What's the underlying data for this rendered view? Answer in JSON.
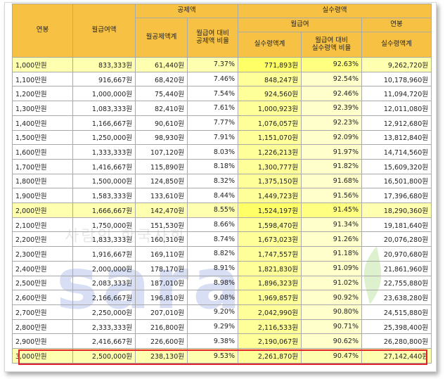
{
  "headers": {
    "annual": "연봉",
    "gross_month": "월급여액",
    "deduction_group": "공제액",
    "deduction_month": "월공제액계",
    "deduction_ratio": "월급여 대비\n공제액 비율",
    "net_group": "실수령액",
    "net_month_group": "월급여",
    "net_month": "실수령액계",
    "net_ratio": "월급여 대비\n실수령액 비율",
    "net_annual_group": "연봉",
    "net_annual": "실수령액계"
  },
  "watermark": {
    "text": "saram",
    "subtext": "사람인 한국사회"
  },
  "rows": [
    {
      "annual": "1,000만원",
      "gross": "833,333원",
      "ded": "61,440원",
      "ded_ratio": "7.37%",
      "net": "771,893원",
      "net_ratio": "92.63%",
      "net_annual": "9,262,720원",
      "hl": true
    },
    {
      "annual": "1,100만원",
      "gross": "916,667원",
      "ded": "68,420원",
      "ded_ratio": "7.46%",
      "net": "848,247원",
      "net_ratio": "92.54%",
      "net_annual": "10,178,960원"
    },
    {
      "annual": "1,200만원",
      "gross": "1,000,000원",
      "ded": "75,440원",
      "ded_ratio": "7.54%",
      "net": "924,560원",
      "net_ratio": "92.46%",
      "net_annual": "11,094,720원"
    },
    {
      "annual": "1,300만원",
      "gross": "1,083,333원",
      "ded": "82,410원",
      "ded_ratio": "7.61%",
      "net": "1,000,923원",
      "net_ratio": "92.39%",
      "net_annual": "12,011,080원"
    },
    {
      "annual": "1,400만원",
      "gross": "1,166,667원",
      "ded": "90,610원",
      "ded_ratio": "7.77%",
      "net": "1,076,057원",
      "net_ratio": "92.23%",
      "net_annual": "12,912,680원"
    },
    {
      "annual": "1,500만원",
      "gross": "1,250,000원",
      "ded": "98,930원",
      "ded_ratio": "7.91%",
      "net": "1,151,070원",
      "net_ratio": "92.09%",
      "net_annual": "13,812,840원"
    },
    {
      "annual": "1,600만원",
      "gross": "1,333,333원",
      "ded": "107,120원",
      "ded_ratio": "8.03%",
      "net": "1,226,213원",
      "net_ratio": "91.97%",
      "net_annual": "14,714,560원"
    },
    {
      "annual": "1,700만원",
      "gross": "1,416,667원",
      "ded": "115,890원",
      "ded_ratio": "8.18%",
      "net": "1,300,777원",
      "net_ratio": "91.82%",
      "net_annual": "15,609,320원"
    },
    {
      "annual": "1,800만원",
      "gross": "1,500,000원",
      "ded": "124,850원",
      "ded_ratio": "8.32%",
      "net": "1,375,150원",
      "net_ratio": "91.68%",
      "net_annual": "16,501,800원"
    },
    {
      "annual": "1,900만원",
      "gross": "1,583,333원",
      "ded": "133,610원",
      "ded_ratio": "8.44%",
      "net": "1,449,723원",
      "net_ratio": "91.56%",
      "net_annual": "17,396,680원"
    },
    {
      "annual": "2,000만원",
      "gross": "1,666,667원",
      "ded": "142,470원",
      "ded_ratio": "8.55%",
      "net": "1,524,197원",
      "net_ratio": "91.45%",
      "net_annual": "18,290,360원",
      "hl": true
    },
    {
      "annual": "2,100만원",
      "gross": "1,750,000원",
      "ded": "151,530원",
      "ded_ratio": "8.66%",
      "net": "1,598,470원",
      "net_ratio": "91.34%",
      "net_annual": "19,181,640원"
    },
    {
      "annual": "2,200만원",
      "gross": "1,833,333원",
      "ded": "160,310원",
      "ded_ratio": "8.74%",
      "net": "1,673,023원",
      "net_ratio": "91.26%",
      "net_annual": "20,076,280원"
    },
    {
      "annual": "2,300만원",
      "gross": "1,916,667원",
      "ded": "169,110원",
      "ded_ratio": "8.82%",
      "net": "1,747,557원",
      "net_ratio": "91.18%",
      "net_annual": "20,970,680원"
    },
    {
      "annual": "2,400만원",
      "gross": "2,000,000원",
      "ded": "178,170원",
      "ded_ratio": "8.91%",
      "net": "1,821,830원",
      "net_ratio": "91.09%",
      "net_annual": "21,861,960원"
    },
    {
      "annual": "2,500만원",
      "gross": "2,083,333원",
      "ded": "187,010원",
      "ded_ratio": "8.98%",
      "net": "1,896,323원",
      "net_ratio": "91.02%",
      "net_annual": "22,755,880원"
    },
    {
      "annual": "2,600만원",
      "gross": "2,166,667원",
      "ded": "196,810원",
      "ded_ratio": "9.08%",
      "net": "1,969,857원",
      "net_ratio": "90.92%",
      "net_annual": "23,638,280원"
    },
    {
      "annual": "2,700만원",
      "gross": "2,250,000원",
      "ded": "207,010원",
      "ded_ratio": "9.20%",
      "net": "2,042,990원",
      "net_ratio": "90.80%",
      "net_annual": "24,515,880원"
    },
    {
      "annual": "2,800만원",
      "gross": "2,333,333원",
      "ded": "216,800원",
      "ded_ratio": "9.29%",
      "net": "2,116,533원",
      "net_ratio": "90.71%",
      "net_annual": "25,398,400원"
    },
    {
      "annual": "2,900만원",
      "gross": "2,416,667원",
      "ded": "226,600원",
      "ded_ratio": "9.38%",
      "net": "2,190,067원",
      "net_ratio": "90.62%",
      "net_annual": "26,280,800원"
    },
    {
      "annual": "3,000만원",
      "gross": "2,500,000원",
      "ded": "238,130원",
      "ded_ratio": "9.53%",
      "net": "2,261,870원",
      "net_ratio": "90.47%",
      "net_annual": "27,142,440원",
      "last": true
    }
  ]
}
